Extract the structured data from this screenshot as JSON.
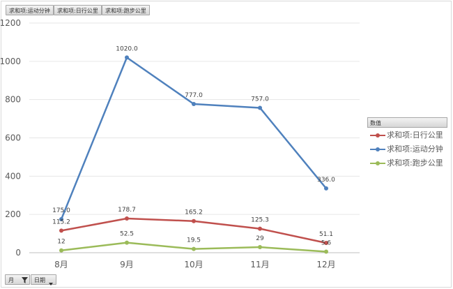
{
  "header": {
    "field_buttons": [
      "求和项:运动分钟",
      "求和项:日行公里",
      "求和项:跑步公里"
    ]
  },
  "footer": {
    "axis_buttons": [
      {
        "label": "月",
        "icon": "filter-icon"
      },
      {
        "label": "日期",
        "icon": "dropdown-arrow-icon"
      }
    ]
  },
  "legend": {
    "title": "数值",
    "position": "right"
  },
  "chart_data": {
    "type": "line",
    "categories": [
      "8月",
      "9月",
      "10月",
      "11月",
      "12月"
    ],
    "ylim": [
      0,
      1200
    ],
    "yticks": [
      0,
      200,
      400,
      600,
      800,
      1000,
      1200
    ],
    "grid": true,
    "series": [
      {
        "name": "求和项:日行公里",
        "color": "#c0504d",
        "values": [
          115.2,
          178.7,
          165.2,
          125.3,
          51.1
        ],
        "labels": [
          "115.2",
          "178.7",
          "165.2",
          "125.3",
          "51.1"
        ]
      },
      {
        "name": "求和项:运动分钟",
        "color": "#4f81bd",
        "values": [
          175.0,
          1020.0,
          777.0,
          757.0,
          336.0
        ],
        "labels": [
          "175.0",
          "1020.0",
          "777.0",
          "757.0",
          "336.0"
        ]
      },
      {
        "name": "求和项:跑步公里",
        "color": "#9bbb59",
        "values": [
          12,
          52.5,
          19.5,
          29,
          5.6
        ],
        "labels": [
          "12",
          "52.5",
          "19.5",
          "29",
          "5.6"
        ]
      }
    ]
  }
}
